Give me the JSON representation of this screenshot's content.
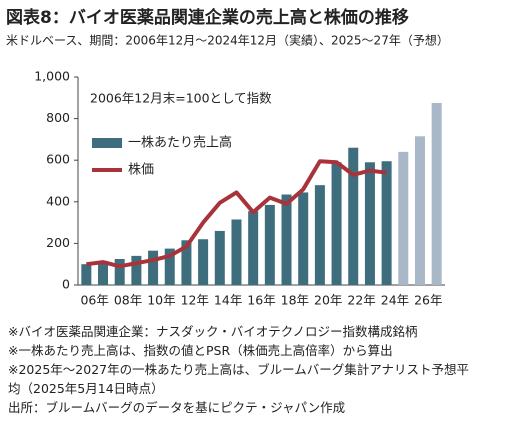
{
  "chart_data": {
    "type": "bar_line",
    "title": "図表8：バイオ医薬品関連企業の売上高と株価の推移",
    "subtitle": "米ドルベース、期間：2006年12月～2024年12月（実績）、2025～27年（予想）",
    "annotation": "2006年12月末=100として指数",
    "categories": [
      "06年",
      null,
      "08年",
      null,
      "10年",
      null,
      "12年",
      null,
      "14年",
      null,
      "16年",
      null,
      "18年",
      null,
      "20年",
      null,
      "22年",
      null,
      "24年",
      null,
      "26年",
      null
    ],
    "series": [
      {
        "name": "一株あたり売上高",
        "kind": "bar",
        "color": "#3e6e7e",
        "colors": [
          "#3e6e7e",
          "#3e6e7e",
          "#3e6e7e",
          "#3e6e7e",
          "#3e6e7e",
          "#3e6e7e",
          "#3e6e7e",
          "#3e6e7e",
          "#3e6e7e",
          "#3e6e7e",
          "#3e6e7e",
          "#3e6e7e",
          "#3e6e7e",
          "#3e6e7e",
          "#3e6e7e",
          "#3e6e7e",
          "#3e6e7e",
          "#3e6e7e",
          "#3e6e7e",
          "#a8b8c9",
          "#a8b8c9",
          "#a8b8c9"
        ],
        "values": [
          100,
          115,
          125,
          140,
          165,
          175,
          215,
          220,
          260,
          315,
          355,
          385,
          435,
          445,
          480,
          590,
          660,
          590,
          595,
          640,
          715,
          875
        ]
      },
      {
        "name": "株価",
        "kind": "line",
        "color": "#a8333a",
        "values": [
          100,
          110,
          90,
          105,
          120,
          140,
          185,
          300,
          395,
          445,
          350,
          420,
          390,
          460,
          595,
          590,
          530,
          550,
          540,
          null,
          null,
          null
        ]
      }
    ],
    "ylim": [
      0,
      1000
    ],
    "yticks": [
      0,
      200,
      400,
      600,
      800,
      {
        "value": 1000,
        "label": "1,000"
      }
    ],
    "grid": false,
    "notes": [
      "※バイオ医薬品関連企業：ナスダック・バイオテクノロジー指数構成銘柄",
      "※一株あたり売上高は、指数の値とPSR（株価売上高倍率）から算出",
      "※2025年～2027年の一株あたり売上高は、ブルームバーグ集計アナリスト予想平均（2025年5月14日時点）",
      "出所：ブルームバーグのデータを基にピクテ・ジャパン作成"
    ]
  }
}
